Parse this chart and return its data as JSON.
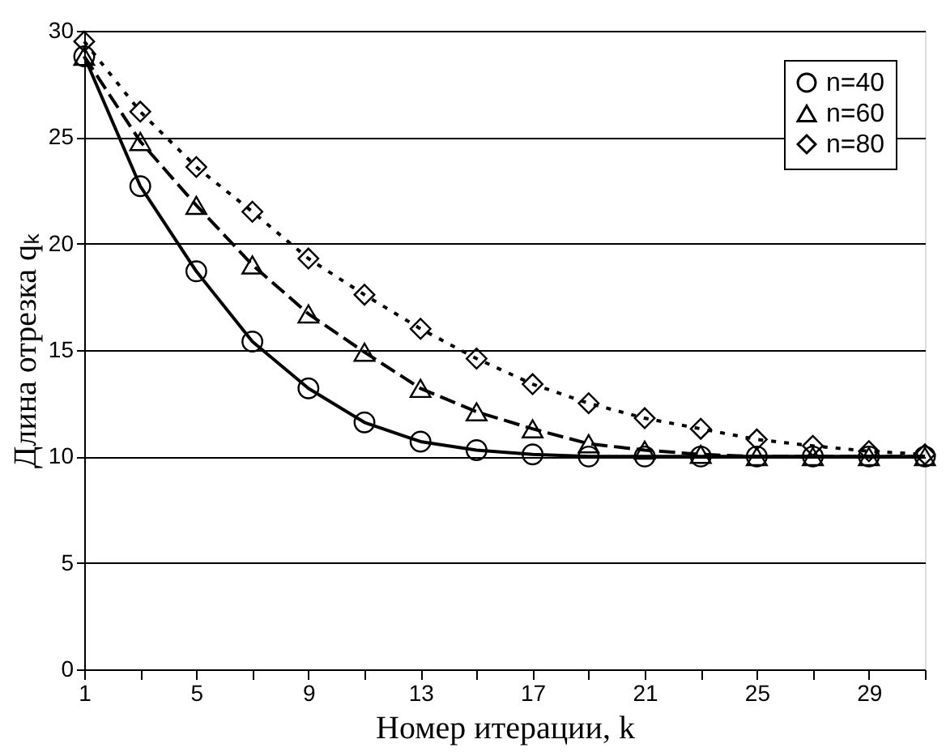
{
  "chart_data": {
    "type": "line",
    "xlabel": "Номер итерации, k",
    "ylabel": "Длина отрезка qₖ",
    "x": [
      1,
      3,
      5,
      7,
      9,
      11,
      13,
      15,
      17,
      19,
      21,
      23,
      25,
      27,
      29,
      31
    ],
    "series": [
      {
        "name": "n=40",
        "color": "#000000",
        "marker": "circle",
        "line_style": "solid",
        "values": [
          28.8,
          22.7,
          18.7,
          15.4,
          13.2,
          11.6,
          10.7,
          10.3,
          10.1,
          10.0,
          10.0,
          10.0,
          10.0,
          10.0,
          10.0,
          10.0
        ]
      },
      {
        "name": "n=60",
        "color": "#000000",
        "marker": "triangle",
        "line_style": "dashed",
        "values": [
          28.8,
          24.8,
          21.8,
          19.0,
          16.7,
          14.9,
          13.2,
          12.1,
          11.3,
          10.6,
          10.3,
          10.1,
          10.0,
          10.0,
          10.0,
          10.0
        ]
      },
      {
        "name": "n=80",
        "color": "#000000",
        "marker": "diamond",
        "line_style": "dotted",
        "values": [
          29.5,
          26.2,
          23.6,
          21.5,
          19.3,
          17.6,
          16.0,
          14.6,
          13.4,
          12.5,
          11.8,
          11.3,
          10.8,
          10.5,
          10.25,
          10.1
        ]
      }
    ],
    "xlim": [
      1,
      31
    ],
    "xticks": [
      1,
      {
        "value": 3,
        "label": null
      },
      5,
      {
        "value": 7,
        "label": null
      },
      9,
      {
        "value": 11,
        "label": null
      },
      13,
      {
        "value": 15,
        "label": null
      },
      17,
      {
        "value": 19,
        "label": null
      },
      21,
      {
        "value": 23,
        "label": null
      },
      25,
      {
        "value": 27,
        "label": null
      },
      29,
      {
        "value": 31,
        "label": null
      }
    ],
    "ylim": [
      0,
      30
    ],
    "yticks": [
      0,
      5,
      10,
      15,
      20,
      25,
      30
    ],
    "grid": "y",
    "legend": "top right"
  }
}
